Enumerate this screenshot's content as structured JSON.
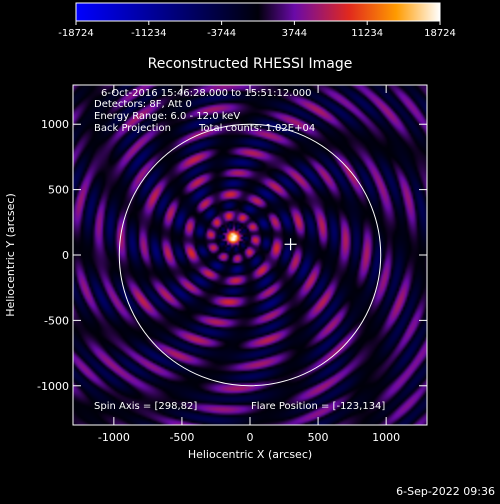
{
  "chart_data": {
    "type": "heatmap",
    "title": "Reconstructed RHESSI Image",
    "xlabel": "Heliocentric X (arcsec)",
    "ylabel": "Heliocentric Y (arcsec)",
    "xlim": [
      -1300,
      1300
    ],
    "ylim": [
      -1300,
      1300
    ],
    "x_ticks": [
      -1000,
      -500,
      0,
      500,
      1000
    ],
    "y_ticks": [
      -1000,
      -500,
      0,
      500,
      1000
    ],
    "colorbar": {
      "min": -18724,
      "max": 18724,
      "tick_labels": [
        "-18724",
        "-11234",
        "-3744",
        "3744",
        "11234",
        "18724"
      ],
      "colormap": [
        "#0000ff",
        "#00000a",
        "#6a0aa8",
        "#e1291d",
        "#ff9b00",
        "#ffffff"
      ]
    },
    "annotations": {
      "time_range": "6-Oct-2016 15:46:28.000 to 15:51:12.000",
      "detectors": "Detectors: 8F, Att 0",
      "energy_range": "Energy Range: 6.0 - 12.0 keV",
      "method": "Back Projection",
      "total_counts": "Total counts: 1.02E+04",
      "spin_axis": "Spin Axis = [298,82]",
      "flare_position": "Flare Position = [-123,134]"
    },
    "source_center": [
      -123,
      134
    ],
    "spin_axis_marker": [
      298,
      82
    ],
    "solar_limb_radius": 960
  },
  "footer": {
    "timestamp": "6-Sep-2022 09:36"
  }
}
